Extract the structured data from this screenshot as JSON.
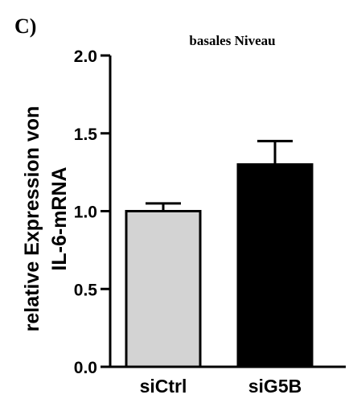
{
  "panel_label": "C)",
  "chart_data": {
    "type": "bar",
    "title": "basales Niveau",
    "xlabel": "",
    "ylabel_lines": [
      "relative Expression von",
      "IL-6-mRNA"
    ],
    "categories": [
      "siCtrl",
      "siG5B"
    ],
    "values": [
      1.0,
      1.3
    ],
    "errors": [
      0.05,
      0.15
    ],
    "bar_colors": [
      "#d3d3d3",
      "#000000"
    ],
    "ylim": [
      0,
      2.0
    ],
    "yticks": [
      0.0,
      0.5,
      1.0,
      1.5,
      2.0
    ],
    "ytick_labels": [
      "0.0",
      "0.5",
      "1.0",
      "1.5",
      "2.0"
    ],
    "grid": false,
    "legend": false
  }
}
